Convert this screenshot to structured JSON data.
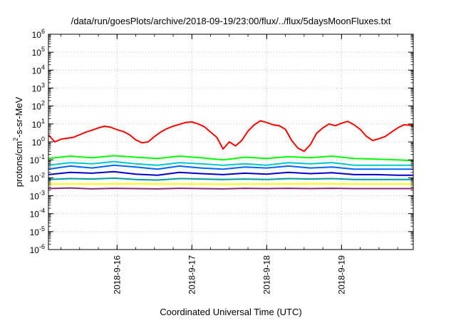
{
  "chart_data": {
    "type": "line",
    "title": "/data/run/goesPlots/archive/2018-09-19/23:00/flux/../flux/5daysMoonFluxes.txt",
    "xlabel": "Coordinated Universal Time (UTC)",
    "ylabel_parts": {
      "before": "protons/cm",
      "sup": "2",
      "after": "-s-sr-MeV"
    },
    "y_scale": "log",
    "ylim": [
      1e-06,
      1000000.0
    ],
    "y_ticks": [
      {
        "base": "10",
        "exp": "-6",
        "value": 1e-06
      },
      {
        "base": "10",
        "exp": "-5",
        "value": 1e-05
      },
      {
        "base": "10",
        "exp": "-4",
        "value": 0.0001
      },
      {
        "base": "10",
        "exp": "-3",
        "value": 0.001
      },
      {
        "base": "10",
        "exp": "-2",
        "value": 0.01
      },
      {
        "base": "10",
        "exp": "-1",
        "value": 0.1
      },
      {
        "base": "10",
        "exp": "0",
        "value": 1
      },
      {
        "base": "10",
        "exp": "1",
        "value": 10
      },
      {
        "base": "10",
        "exp": "2",
        "value": 100
      },
      {
        "base": "10",
        "exp": "3",
        "value": 1000
      },
      {
        "base": "10",
        "exp": "4",
        "value": 10000
      },
      {
        "base": "10",
        "exp": "5",
        "value": 100000
      },
      {
        "base": "10",
        "exp": "6",
        "value": 1000000
      }
    ],
    "xlim": [
      "2018-09-15 02:00",
      "2018-09-19 23:00"
    ],
    "x_ticks": [
      {
        "label": "2018-9-16",
        "value": "2018-09-16 00:00"
      },
      {
        "label": "2018-9-17",
        "value": "2018-09-17 00:00"
      },
      {
        "label": "2018-9-18",
        "value": "2018-09-18 00:00"
      },
      {
        "label": "2018-9-19",
        "value": "2018-09-19 00:00"
      }
    ],
    "grid": true,
    "series": [
      {
        "color": "#ff0000",
        "x": [
          "2018-09-15 02:00",
          "2018-09-15 04:00",
          "2018-09-15 06:00",
          "2018-09-15 08:00",
          "2018-09-15 10:00",
          "2018-09-15 12:00",
          "2018-09-15 14:00",
          "2018-09-15 16:00",
          "2018-09-15 18:00",
          "2018-09-15 20:00",
          "2018-09-15 22:00",
          "2018-09-16 00:00",
          "2018-09-16 02:00",
          "2018-09-16 04:00",
          "2018-09-16 06:00",
          "2018-09-16 08:00",
          "2018-09-16 10:00",
          "2018-09-16 12:00",
          "2018-09-16 14:00",
          "2018-09-16 16:00",
          "2018-09-16 18:00",
          "2018-09-16 20:00",
          "2018-09-16 22:00",
          "2018-09-17 00:00",
          "2018-09-17 02:00",
          "2018-09-17 04:00",
          "2018-09-17 06:00",
          "2018-09-17 08:00",
          "2018-09-17 10:00",
          "2018-09-17 12:00",
          "2018-09-17 14:00",
          "2018-09-17 16:00",
          "2018-09-17 18:00",
          "2018-09-17 20:00",
          "2018-09-17 22:00",
          "2018-09-18 00:00",
          "2018-09-18 02:00",
          "2018-09-18 04:00",
          "2018-09-18 06:00",
          "2018-09-18 08:00",
          "2018-09-18 10:00",
          "2018-09-18 12:00",
          "2018-09-18 14:00",
          "2018-09-18 16:00",
          "2018-09-18 18:00",
          "2018-09-18 20:00",
          "2018-09-18 22:00",
          "2018-09-19 00:00",
          "2018-09-19 02:00",
          "2018-09-19 04:00",
          "2018-09-19 06:00",
          "2018-09-19 08:00",
          "2018-09-19 10:00",
          "2018-09-19 12:00",
          "2018-09-19 14:00",
          "2018-09-19 16:00",
          "2018-09-19 18:00",
          "2018-09-19 20:00",
          "2018-09-19 22:00",
          "2018-09-19 23:00"
        ],
        "values": [
          2.5,
          1.0,
          1.4,
          1.6,
          1.8,
          2.5,
          3.5,
          4.5,
          6.0,
          7.5,
          6.5,
          4.8,
          3.8,
          2.5,
          1.3,
          0.9,
          1.0,
          2.0,
          3.5,
          5.5,
          7.5,
          9.5,
          12,
          13,
          10,
          7,
          3.5,
          1.8,
          0.4,
          1.0,
          0.6,
          1.2,
          4.0,
          9.0,
          15,
          12,
          9.0,
          8.0,
          5.0,
          1.2,
          0.45,
          0.3,
          0.7,
          3.0,
          6.0,
          10,
          8.0,
          11,
          14,
          9.0,
          5.0,
          2.0,
          1.2,
          1.5,
          2.0,
          3.5,
          6.0,
          9.0,
          8.5,
          7.5
        ]
      },
      {
        "color": "#00ff00",
        "x": [
          "2018-09-15 02:00",
          "2018-09-15 09:00",
          "2018-09-15 16:00",
          "2018-09-15 23:00",
          "2018-09-16 06:00",
          "2018-09-16 13:00",
          "2018-09-16 20:00",
          "2018-09-17 03:00",
          "2018-09-17 10:00",
          "2018-09-17 17:00",
          "2018-09-18 00:00",
          "2018-09-18 07:00",
          "2018-09-18 14:00",
          "2018-09-18 21:00",
          "2018-09-19 04:00",
          "2018-09-19 11:00",
          "2018-09-19 18:00",
          "2018-09-19 23:00"
        ],
        "values": [
          0.12,
          0.16,
          0.13,
          0.17,
          0.14,
          0.12,
          0.16,
          0.13,
          0.1,
          0.14,
          0.12,
          0.15,
          0.13,
          0.16,
          0.12,
          0.11,
          0.1,
          0.09
        ]
      },
      {
        "color": "#00c8c8",
        "x": [
          "2018-09-15 02:00",
          "2018-09-15 09:00",
          "2018-09-15 16:00",
          "2018-09-15 23:00",
          "2018-09-16 06:00",
          "2018-09-16 13:00",
          "2018-09-16 20:00",
          "2018-09-17 03:00",
          "2018-09-17 10:00",
          "2018-09-17 17:00",
          "2018-09-18 00:00",
          "2018-09-18 07:00",
          "2018-09-18 14:00",
          "2018-09-18 21:00",
          "2018-09-19 04:00",
          "2018-09-19 11:00",
          "2018-09-19 18:00",
          "2018-09-19 23:00"
        ],
        "values": [
          0.05,
          0.07,
          0.06,
          0.08,
          0.06,
          0.05,
          0.07,
          0.06,
          0.05,
          0.06,
          0.05,
          0.07,
          0.06,
          0.07,
          0.05,
          0.05,
          0.05,
          0.05
        ]
      },
      {
        "color": "#0064ff",
        "x": [
          "2018-09-15 02:00",
          "2018-09-15 09:00",
          "2018-09-15 16:00",
          "2018-09-15 23:00",
          "2018-09-16 06:00",
          "2018-09-16 13:00",
          "2018-09-16 20:00",
          "2018-09-17 03:00",
          "2018-09-17 10:00",
          "2018-09-17 17:00",
          "2018-09-18 00:00",
          "2018-09-18 07:00",
          "2018-09-18 14:00",
          "2018-09-18 21:00",
          "2018-09-19 04:00",
          "2018-09-19 11:00",
          "2018-09-19 18:00",
          "2018-09-19 23:00"
        ],
        "values": [
          0.03,
          0.045,
          0.035,
          0.05,
          0.04,
          0.03,
          0.045,
          0.035,
          0.03,
          0.04,
          0.035,
          0.045,
          0.035,
          0.04,
          0.03,
          0.03,
          0.03,
          0.03
        ]
      },
      {
        "color": "#0000c8",
        "x": [
          "2018-09-15 02:00",
          "2018-09-15 09:00",
          "2018-09-15 16:00",
          "2018-09-15 23:00",
          "2018-09-16 06:00",
          "2018-09-16 13:00",
          "2018-09-16 20:00",
          "2018-09-17 03:00",
          "2018-09-17 10:00",
          "2018-09-17 17:00",
          "2018-09-18 00:00",
          "2018-09-18 07:00",
          "2018-09-18 14:00",
          "2018-09-18 21:00",
          "2018-09-19 04:00",
          "2018-09-19 11:00",
          "2018-09-19 18:00",
          "2018-09-19 23:00"
        ],
        "values": [
          0.015,
          0.02,
          0.018,
          0.022,
          0.016,
          0.014,
          0.02,
          0.017,
          0.015,
          0.018,
          0.016,
          0.02,
          0.017,
          0.019,
          0.015,
          0.015,
          0.014,
          0.014
        ]
      },
      {
        "color": "#00a0a0",
        "x": [
          "2018-09-15 02:00",
          "2018-09-15 09:00",
          "2018-09-15 16:00",
          "2018-09-15 23:00",
          "2018-09-16 06:00",
          "2018-09-16 13:00",
          "2018-09-16 20:00",
          "2018-09-17 03:00",
          "2018-09-17 10:00",
          "2018-09-17 17:00",
          "2018-09-18 00:00",
          "2018-09-18 07:00",
          "2018-09-18 14:00",
          "2018-09-18 21:00",
          "2018-09-19 04:00",
          "2018-09-19 11:00",
          "2018-09-19 18:00",
          "2018-09-19 23:00"
        ],
        "values": [
          0.008,
          0.009,
          0.0085,
          0.0095,
          0.008,
          0.0075,
          0.009,
          0.0085,
          0.008,
          0.0085,
          0.008,
          0.009,
          0.0085,
          0.009,
          0.008,
          0.008,
          0.008,
          0.008
        ]
      },
      {
        "color": "#ffff00",
        "x": [
          "2018-09-15 02:00",
          "2018-09-15 16:00",
          "2018-09-16 06:00",
          "2018-09-16 20:00",
          "2018-09-17 10:00",
          "2018-09-18 00:00",
          "2018-09-18 14:00",
          "2018-09-19 04:00",
          "2018-09-19 18:00",
          "2018-09-19 23:00"
        ],
        "values": [
          0.0045,
          0.0045,
          0.0046,
          0.0045,
          0.0044,
          0.0045,
          0.0046,
          0.0045,
          0.0045,
          0.0045
        ]
      },
      {
        "color": "#8b2a6e",
        "x": [
          "2018-09-15 02:00",
          "2018-09-15 09:00",
          "2018-09-15 16:00",
          "2018-09-15 23:00",
          "2018-09-16 06:00",
          "2018-09-16 13:00",
          "2018-09-16 20:00",
          "2018-09-17 03:00",
          "2018-09-17 10:00",
          "2018-09-17 17:00",
          "2018-09-18 00:00",
          "2018-09-18 07:00",
          "2018-09-18 14:00",
          "2018-09-18 21:00",
          "2018-09-19 04:00",
          "2018-09-19 11:00",
          "2018-09-19 18:00",
          "2018-09-19 23:00"
        ],
        "values": [
          0.0025,
          0.0027,
          0.0024,
          0.0026,
          0.0025,
          0.0024,
          0.0026,
          0.0025,
          0.0024,
          0.0026,
          0.0025,
          0.0026,
          0.0025,
          0.0026,
          0.0025,
          0.0025,
          0.0025,
          0.0025
        ]
      }
    ]
  }
}
